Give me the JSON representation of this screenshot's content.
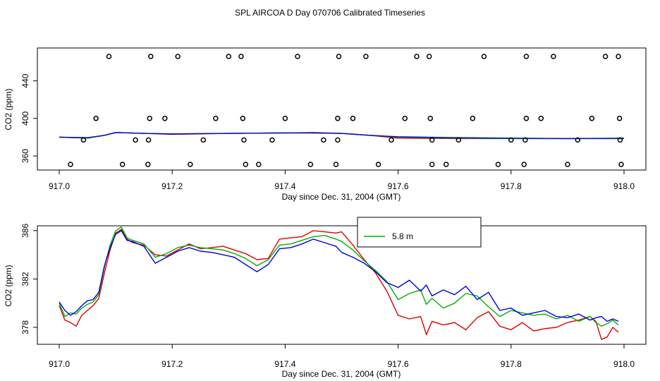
{
  "title": "SPL AIRCOA D  Day 070706  Calibrated Timeseries",
  "colors": {
    "red": "#e00000",
    "green": "#00b000",
    "blue": "#0000e0",
    "axis": "#000000"
  },
  "chart_data": [
    {
      "type": "scatter",
      "panel": "top",
      "xlabel": "Day since Dec. 31, 2004 (GMT)",
      "ylabel": "CO2 (ppm)",
      "xlim": [
        917.0,
        918.0
      ],
      "ylim": [
        345,
        475
      ],
      "xticks": [
        "917.0",
        "917.2",
        "917.4",
        "917.6",
        "917.8",
        "918.0"
      ],
      "xtick_values": [
        917.0,
        917.2,
        917.4,
        917.6,
        917.8,
        918.0
      ],
      "yticks": [
        "360",
        "400",
        "440"
      ],
      "ytick_values": [
        360,
        400,
        440
      ],
      "points": [
        {
          "x": 917.088,
          "y": 466
        },
        {
          "x": 917.162,
          "y": 466
        },
        {
          "x": 917.21,
          "y": 466
        },
        {
          "x": 917.3,
          "y": 466
        },
        {
          "x": 917.322,
          "y": 466
        },
        {
          "x": 917.422,
          "y": 466
        },
        {
          "x": 917.495,
          "y": 466
        },
        {
          "x": 917.543,
          "y": 466
        },
        {
          "x": 917.633,
          "y": 466
        },
        {
          "x": 917.655,
          "y": 466
        },
        {
          "x": 917.752,
          "y": 466
        },
        {
          "x": 917.827,
          "y": 466
        },
        {
          "x": 917.875,
          "y": 466
        },
        {
          "x": 917.967,
          "y": 466
        },
        {
          "x": 917.99,
          "y": 466
        },
        {
          "x": 917.065,
          "y": 400
        },
        {
          "x": 917.16,
          "y": 400
        },
        {
          "x": 917.187,
          "y": 400
        },
        {
          "x": 917.277,
          "y": 400
        },
        {
          "x": 917.325,
          "y": 400
        },
        {
          "x": 917.4,
          "y": 400
        },
        {
          "x": 917.493,
          "y": 400
        },
        {
          "x": 917.52,
          "y": 400
        },
        {
          "x": 917.612,
          "y": 400
        },
        {
          "x": 917.657,
          "y": 400
        },
        {
          "x": 917.732,
          "y": 400
        },
        {
          "x": 917.827,
          "y": 400
        },
        {
          "x": 917.853,
          "y": 400
        },
        {
          "x": 917.943,
          "y": 400
        },
        {
          "x": 917.992,
          "y": 400
        },
        {
          "x": 917.043,
          "y": 377
        },
        {
          "x": 917.135,
          "y": 377
        },
        {
          "x": 917.158,
          "y": 377
        },
        {
          "x": 917.255,
          "y": 377
        },
        {
          "x": 917.327,
          "y": 377
        },
        {
          "x": 917.377,
          "y": 377
        },
        {
          "x": 917.468,
          "y": 377
        },
        {
          "x": 917.493,
          "y": 377
        },
        {
          "x": 917.588,
          "y": 377
        },
        {
          "x": 917.66,
          "y": 377
        },
        {
          "x": 917.707,
          "y": 377
        },
        {
          "x": 917.8,
          "y": 377
        },
        {
          "x": 917.825,
          "y": 377
        },
        {
          "x": 917.918,
          "y": 377
        },
        {
          "x": 917.993,
          "y": 377
        },
        {
          "x": 917.02,
          "y": 351
        },
        {
          "x": 917.112,
          "y": 351
        },
        {
          "x": 917.157,
          "y": 351
        },
        {
          "x": 917.232,
          "y": 351
        },
        {
          "x": 917.33,
          "y": 351
        },
        {
          "x": 917.353,
          "y": 351
        },
        {
          "x": 917.445,
          "y": 351
        },
        {
          "x": 917.49,
          "y": 351
        },
        {
          "x": 917.565,
          "y": 351
        },
        {
          "x": 917.66,
          "y": 351
        },
        {
          "x": 917.685,
          "y": 351
        },
        {
          "x": 917.777,
          "y": 351
        },
        {
          "x": 917.823,
          "y": 351
        },
        {
          "x": 917.9,
          "y": 351
        },
        {
          "x": 917.995,
          "y": 351
        }
      ],
      "series": [
        {
          "name": "red",
          "color": "#e00000",
          "x": [
            917.0,
            917.05,
            917.08,
            917.1,
            917.15,
            917.2,
            917.3,
            917.4,
            917.45,
            917.5,
            917.55,
            917.6,
            917.7,
            917.8,
            917.9,
            918.0
          ],
          "y": [
            380,
            379,
            382,
            385,
            384,
            383,
            384,
            384.5,
            385,
            384,
            382,
            379,
            378.5,
            378.5,
            378.5,
            378.5
          ]
        },
        {
          "name": "green",
          "color": "#00b000",
          "x": [
            917.0,
            917.05,
            917.08,
            917.1,
            917.15,
            917.2,
            917.3,
            917.4,
            917.45,
            917.5,
            917.55,
            917.6,
            917.7,
            917.8,
            917.9,
            918.0
          ],
          "y": [
            380,
            379,
            382,
            385,
            384,
            383.5,
            384,
            384.5,
            384.5,
            384,
            382,
            380,
            379,
            378.5,
            378.5,
            378.5
          ]
        },
        {
          "name": "blue",
          "color": "#0000e0",
          "x": [
            917.0,
            917.05,
            917.08,
            917.1,
            917.15,
            917.2,
            917.3,
            917.4,
            917.45,
            917.5,
            917.55,
            917.6,
            917.7,
            917.8,
            917.9,
            918.0
          ],
          "y": [
            380,
            379.5,
            382,
            385,
            384,
            383.5,
            384,
            384.5,
            384.5,
            384,
            382,
            380.5,
            379.5,
            379,
            378.5,
            379
          ]
        }
      ]
    },
    {
      "type": "line",
      "panel": "bottom",
      "xlabel": "Day since Dec. 31, 2004 (GMT)",
      "ylabel": "CO2 (ppm)",
      "xlim": [
        917.0,
        918.0
      ],
      "ylim": [
        376.6,
        386.4
      ],
      "xticks": [
        "917.0",
        "917.2",
        "917.4",
        "917.6",
        "917.8",
        "918.0"
      ],
      "xtick_values": [
        917.0,
        917.2,
        917.4,
        917.6,
        917.8,
        918.0
      ],
      "yticks": [
        "378",
        "382",
        "386"
      ],
      "ytick_values": [
        378,
        382,
        386
      ],
      "legend": {
        "placement": "top-center",
        "entries": [
          {
            "label": "5.8 m",
            "color": "#00b000"
          }
        ]
      },
      "series": [
        {
          "name": "red",
          "color": "#e00000",
          "x": [
            917.0,
            917.01,
            917.02,
            917.03,
            917.04,
            917.05,
            917.06,
            917.07,
            917.08,
            917.09,
            917.1,
            917.11,
            917.12,
            917.13,
            917.15,
            917.17,
            917.19,
            917.21,
            917.23,
            917.25,
            917.27,
            917.29,
            917.31,
            917.33,
            917.35,
            917.37,
            917.39,
            917.41,
            917.43,
            917.45,
            917.47,
            917.49,
            917.5,
            917.52,
            917.54,
            917.56,
            917.58,
            917.6,
            917.62,
            917.64,
            917.65,
            917.66,
            917.68,
            917.7,
            917.72,
            917.74,
            917.76,
            917.78,
            917.8,
            917.82,
            917.84,
            917.86,
            917.88,
            917.9,
            917.92,
            917.94,
            917.95,
            917.96,
            917.97,
            917.98,
            917.99
          ],
          "y": [
            379.8,
            378.6,
            378.4,
            378.1,
            379.0,
            379.4,
            379.8,
            380.4,
            382.5,
            384.4,
            385.8,
            386.1,
            385.3,
            385.0,
            384.8,
            384.0,
            383.9,
            384.4,
            384.9,
            384.5,
            384.6,
            384.7,
            384.4,
            384.1,
            383.6,
            383.7,
            385.3,
            385.4,
            385.5,
            386.0,
            385.9,
            385.8,
            385.9,
            384.8,
            383.6,
            382.5,
            381.0,
            379.0,
            378.7,
            378.9,
            377.4,
            378.5,
            378.2,
            378.4,
            377.8,
            378.8,
            379.3,
            378.1,
            377.8,
            378.4,
            377.7,
            377.9,
            378.0,
            378.4,
            378.6,
            378.9,
            378.5,
            377.0,
            377.2,
            378.0,
            377.6
          ]
        },
        {
          "name": "green",
          "color": "#00b000",
          "x": [
            917.0,
            917.01,
            917.02,
            917.03,
            917.04,
            917.05,
            917.06,
            917.07,
            917.08,
            917.09,
            917.1,
            917.11,
            917.12,
            917.13,
            917.15,
            917.17,
            917.19,
            917.21,
            917.23,
            917.25,
            917.27,
            917.29,
            917.31,
            917.33,
            917.35,
            917.37,
            917.39,
            917.41,
            917.43,
            917.45,
            917.47,
            917.49,
            917.5,
            917.52,
            917.54,
            917.56,
            917.58,
            917.6,
            917.62,
            917.64,
            917.65,
            917.66,
            917.68,
            917.7,
            917.72,
            917.74,
            917.76,
            917.78,
            917.8,
            917.82,
            917.84,
            917.86,
            917.88,
            917.9,
            917.92,
            917.94,
            917.95,
            917.96,
            917.97,
            917.98,
            917.99
          ],
          "y": [
            380.0,
            378.9,
            379.2,
            379.1,
            379.6,
            379.9,
            380.1,
            380.7,
            383.0,
            384.8,
            386.0,
            386.3,
            385.4,
            385.2,
            384.9,
            383.8,
            384.1,
            384.6,
            384.8,
            384.6,
            384.5,
            384.4,
            384.1,
            383.7,
            383.1,
            383.6,
            384.8,
            384.9,
            385.2,
            385.5,
            385.6,
            385.3,
            385.1,
            384.4,
            383.5,
            382.7,
            381.8,
            380.3,
            380.8,
            381.1,
            379.9,
            380.4,
            379.6,
            380.0,
            380.8,
            380.6,
            379.7,
            378.9,
            379.4,
            379.2,
            379.0,
            379.1,
            378.7,
            379.0,
            378.5,
            378.9,
            378.4,
            378.1,
            378.3,
            378.6,
            378.2
          ]
        },
        {
          "name": "blue",
          "color": "#0000e0",
          "x": [
            917.0,
            917.01,
            917.02,
            917.03,
            917.04,
            917.05,
            917.06,
            917.07,
            917.08,
            917.09,
            917.1,
            917.11,
            917.12,
            917.13,
            917.15,
            917.17,
            917.19,
            917.21,
            917.23,
            917.25,
            917.27,
            917.29,
            917.31,
            917.33,
            917.35,
            917.37,
            917.39,
            917.41,
            917.43,
            917.45,
            917.47,
            917.49,
            917.5,
            917.52,
            917.54,
            917.56,
            917.58,
            917.6,
            917.62,
            917.64,
            917.65,
            917.66,
            917.68,
            917.7,
            917.72,
            917.74,
            917.76,
            917.78,
            917.8,
            917.82,
            917.84,
            917.86,
            917.88,
            917.9,
            917.92,
            917.94,
            917.95,
            917.96,
            917.97,
            917.98,
            917.99
          ],
          "y": [
            380.1,
            379.4,
            379.0,
            379.3,
            379.8,
            380.2,
            380.3,
            380.9,
            383.1,
            384.6,
            385.7,
            386.0,
            385.2,
            385.1,
            384.7,
            383.3,
            383.8,
            384.3,
            384.6,
            384.3,
            384.2,
            384.0,
            383.8,
            383.2,
            382.6,
            383.2,
            384.5,
            384.6,
            384.9,
            385.3,
            385.0,
            384.7,
            384.2,
            383.8,
            383.3,
            382.6,
            381.7,
            381.3,
            381.9,
            381.0,
            381.5,
            380.6,
            381.1,
            380.7,
            381.4,
            380.3,
            380.9,
            379.4,
            379.6,
            379.0,
            379.2,
            379.4,
            378.9,
            378.8,
            379.1,
            378.6,
            378.8,
            378.9,
            378.5,
            378.7,
            378.5
          ]
        }
      ]
    }
  ]
}
